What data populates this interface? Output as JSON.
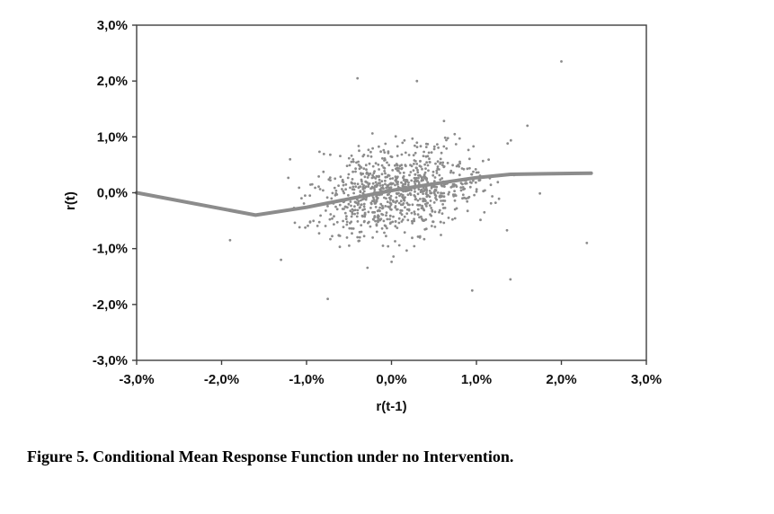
{
  "figure": {
    "caption": "Figure 5. Conditional Mean Response Function under no Intervention."
  },
  "chart_data": {
    "type": "scatter",
    "title": "",
    "xlabel": "r(t-1)",
    "ylabel": "r(t)",
    "xlim": [
      -3,
      3
    ],
    "ylim": [
      -3,
      3
    ],
    "grid": false,
    "legend": "none",
    "x_tick_values": [
      -3,
      -2,
      -1,
      0,
      1,
      2,
      3
    ],
    "x_tick_labels": [
      "-3,0%",
      "-2,0%",
      "-1,0%",
      "0,0%",
      "1,0%",
      "2,0%",
      "3,0%"
    ],
    "y_tick_values": [
      -3,
      -2,
      -1,
      0,
      1,
      2,
      3
    ],
    "y_tick_labels": [
      "-3,0%",
      "-2,0%",
      "-1,0%",
      "0,0%",
      "1,0%",
      "2,0%",
      "3,0%"
    ],
    "point_color": "#7f7f7f",
    "line_color": "#8c8c8c",
    "border_color": "#3f3f3f",
    "scatter": {
      "description": "Dense cloud of ~900 return pairs centered near (0%,0%), horizontal std ~0.5%, vertical std ~0.45%, slight positive correlation; bulk of points within ±1.5%",
      "count": 880,
      "seed": 42,
      "center_x": 0.05,
      "center_y": 0.02,
      "std_x": 0.5,
      "std_y": 0.4,
      "slope": 0.18,
      "outliers": [
        [
          -0.4,
          2.05
        ],
        [
          0.3,
          2.0
        ],
        [
          2.0,
          2.35
        ],
        [
          1.6,
          1.2
        ],
        [
          2.3,
          -0.9
        ],
        [
          1.4,
          -1.55
        ],
        [
          -0.75,
          -1.9
        ],
        [
          -1.3,
          -1.2
        ],
        [
          0.95,
          -1.75
        ],
        [
          -1.9,
          -0.85
        ]
      ]
    },
    "mean_line": {
      "name": "Conditional mean response function",
      "points": [
        [
          -3.0,
          0.0
        ],
        [
          -1.6,
          -0.4
        ],
        [
          -1.0,
          -0.26
        ],
        [
          -0.5,
          -0.11
        ],
        [
          0.0,
          0.04
        ],
        [
          0.5,
          0.16
        ],
        [
          1.0,
          0.27
        ],
        [
          1.4,
          0.33
        ],
        [
          1.8,
          0.34
        ],
        [
          2.35,
          0.35
        ]
      ]
    }
  }
}
